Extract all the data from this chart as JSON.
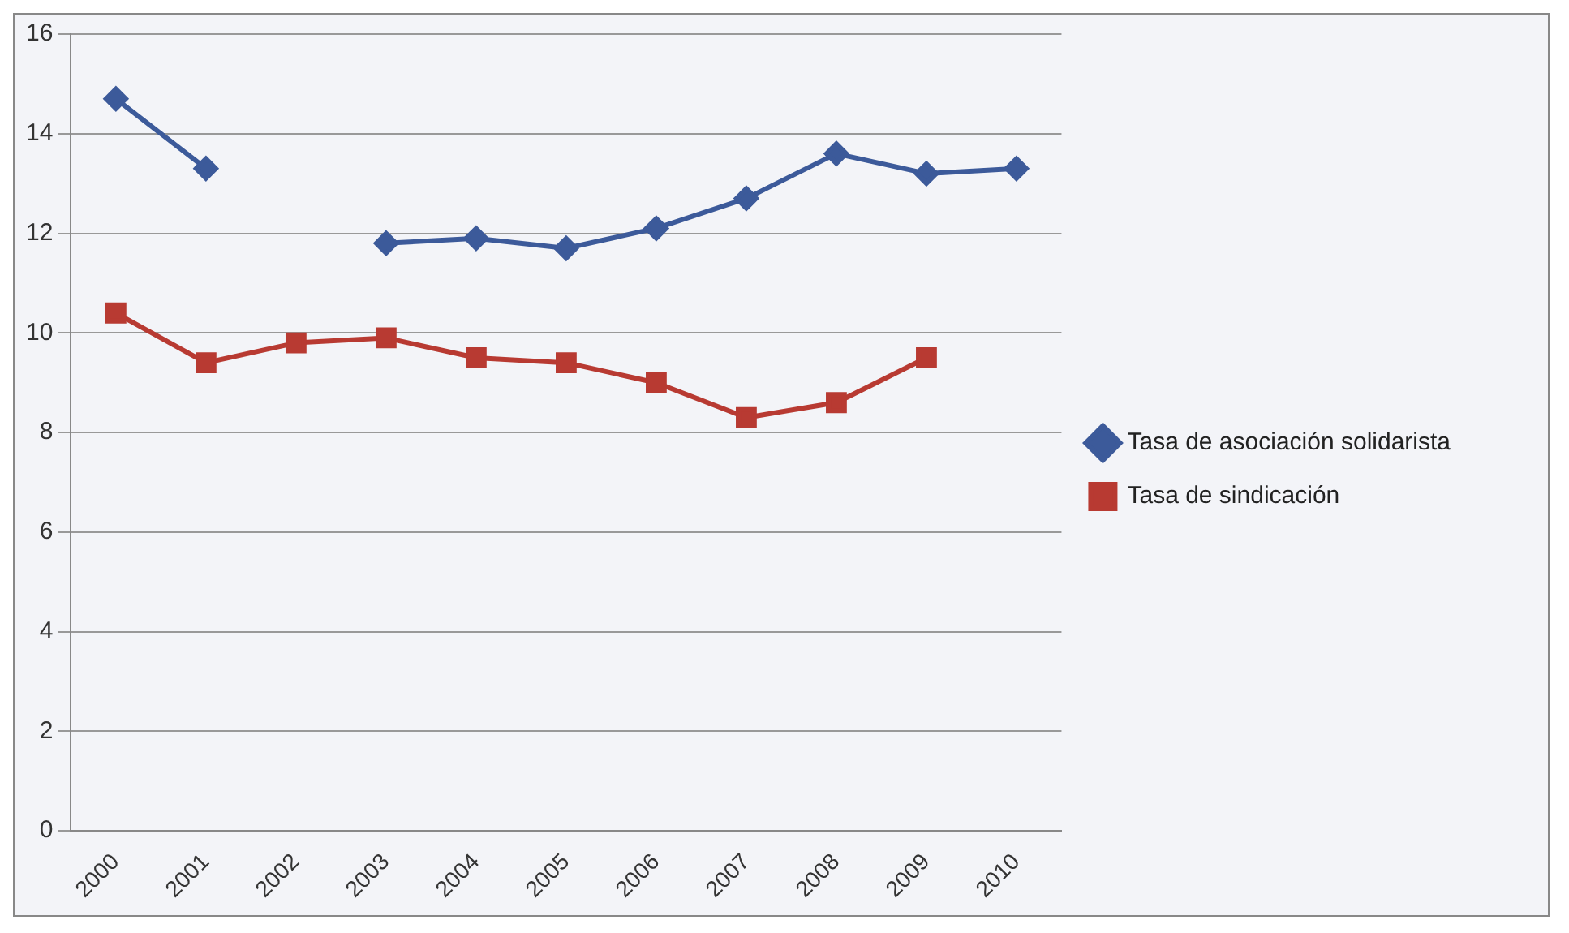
{
  "chart_data": {
    "type": "line",
    "categories": [
      "2000",
      "2001",
      "2002",
      "2003",
      "2004",
      "2005",
      "2006",
      "2007",
      "2008",
      "2009",
      "2010"
    ],
    "series": [
      {
        "name": "Tasa de asociación solidarista",
        "color": "#3c5a9a",
        "marker": "diamond",
        "values": [
          14.7,
          13.3,
          null,
          11.8,
          11.9,
          11.7,
          12.1,
          12.7,
          13.6,
          13.2,
          13.3
        ]
      },
      {
        "name": "Tasa de sindicación",
        "color": "#b83a32",
        "marker": "square",
        "values": [
          10.4,
          9.4,
          9.8,
          9.9,
          9.5,
          9.4,
          9.0,
          8.3,
          8.6,
          9.5,
          null
        ]
      }
    ],
    "ylim": [
      0,
      16
    ],
    "yticks": [
      0,
      2,
      4,
      6,
      8,
      10,
      12,
      14,
      16
    ],
    "grid": "y",
    "legend": "right"
  }
}
